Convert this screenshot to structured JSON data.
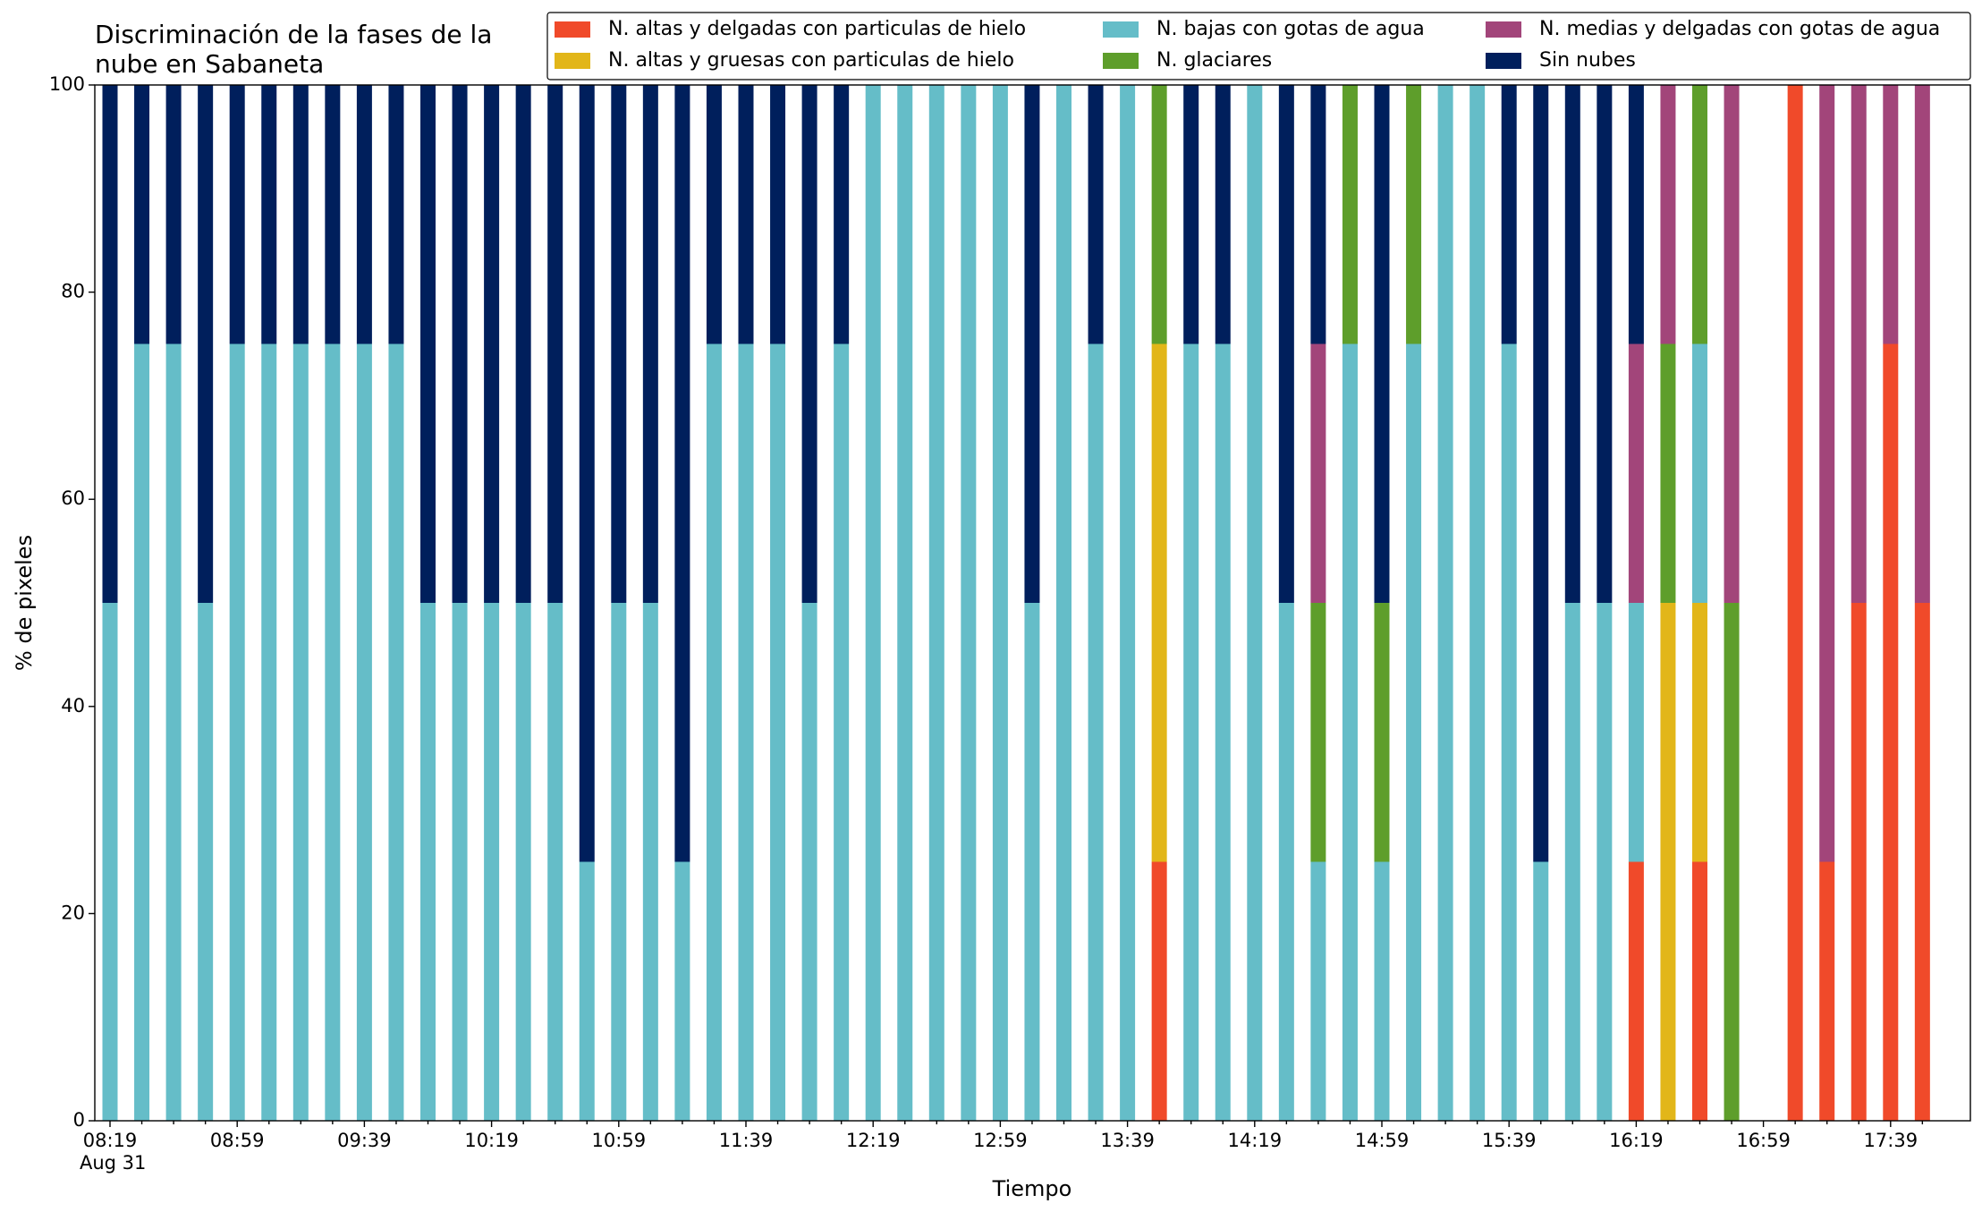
{
  "chart_data": {
    "type": "stacked_bar",
    "title_lines": [
      "Discriminación de la fases de la",
      "nube en Sabaneta"
    ],
    "xlabel": "Tiempo",
    "xlabel_date": "Aug 31",
    "ylabel": "% de pixeles",
    "ylim": [
      0,
      100
    ],
    "yticks": [
      0,
      20,
      40,
      60,
      80,
      100
    ],
    "grid": false,
    "legend": "top right",
    "categories": [
      "08:19",
      null,
      null,
      null,
      "08:59",
      null,
      null,
      null,
      "09:39",
      null,
      null,
      null,
      "10:19",
      null,
      null,
      null,
      "10:59",
      null,
      null,
      null,
      "11:39",
      null,
      null,
      null,
      "12:19",
      null,
      null,
      null,
      "12:59",
      null,
      null,
      null,
      "13:39",
      null,
      null,
      null,
      "14:19",
      null,
      null,
      null,
      "14:59",
      null,
      null,
      null,
      "15:39",
      null,
      null,
      null,
      "16:19",
      null,
      null,
      null,
      "16:59",
      null,
      null,
      null,
      "17:39",
      null
    ],
    "series": [
      {
        "name": "N. altas y delgadas con particulas de hielo",
        "color": "#f04a2a",
        "values": [
          0,
          0,
          0,
          0,
          0,
          0,
          0,
          0,
          0,
          0,
          0,
          0,
          0,
          0,
          0,
          0,
          0,
          0,
          0,
          0,
          0,
          0,
          0,
          0,
          0,
          0,
          0,
          0,
          0,
          0,
          0,
          0,
          0,
          25,
          0,
          0,
          0,
          0,
          0,
          0,
          0,
          0,
          0,
          0,
          0,
          0,
          0,
          0,
          25,
          0,
          25,
          0,
          0,
          100,
          25,
          50,
          75,
          50
        ]
      },
      {
        "name": "N. altas y gruesas con particulas de hielo",
        "color": "#e2b619",
        "values": [
          0,
          0,
          0,
          0,
          0,
          0,
          0,
          0,
          0,
          0,
          0,
          0,
          0,
          0,
          0,
          0,
          0,
          0,
          0,
          0,
          0,
          0,
          0,
          0,
          0,
          0,
          0,
          0,
          0,
          0,
          0,
          0,
          0,
          50,
          0,
          0,
          0,
          0,
          0,
          0,
          0,
          0,
          0,
          0,
          0,
          0,
          0,
          0,
          0,
          50,
          25,
          0,
          0,
          0,
          0,
          0,
          0,
          0
        ]
      },
      {
        "name": "N. bajas con gotas de agua",
        "color": "#65bdc8",
        "values": [
          50,
          75,
          75,
          50,
          75,
          75,
          75,
          75,
          75,
          75,
          50,
          50,
          50,
          50,
          50,
          25,
          50,
          50,
          25,
          75,
          75,
          75,
          50,
          75,
          100,
          100,
          100,
          100,
          100,
          50,
          100,
          75,
          100,
          0,
          75,
          75,
          100,
          50,
          25,
          75,
          25,
          75,
          100,
          100,
          75,
          25,
          50,
          50,
          25,
          0,
          25,
          0,
          0,
          0,
          0,
          0,
          0,
          0
        ]
      },
      {
        "name": "N. glaciares",
        "color": "#5e9e2b",
        "values": [
          0,
          0,
          0,
          0,
          0,
          0,
          0,
          0,
          0,
          0,
          0,
          0,
          0,
          0,
          0,
          0,
          0,
          0,
          0,
          0,
          0,
          0,
          0,
          0,
          0,
          0,
          0,
          0,
          0,
          0,
          0,
          0,
          0,
          25,
          0,
          0,
          0,
          0,
          25,
          25,
          25,
          25,
          0,
          0,
          0,
          0,
          0,
          0,
          0,
          25,
          25,
          50,
          0,
          0,
          0,
          0,
          0,
          0
        ]
      },
      {
        "name": "N. medias y delgadas con gotas de agua",
        "color": "#a2457a",
        "values": [
          0,
          0,
          0,
          0,
          0,
          0,
          0,
          0,
          0,
          0,
          0,
          0,
          0,
          0,
          0,
          0,
          0,
          0,
          0,
          0,
          0,
          0,
          0,
          0,
          0,
          0,
          0,
          0,
          0,
          0,
          0,
          0,
          0,
          0,
          0,
          0,
          0,
          0,
          25,
          0,
          0,
          0,
          0,
          0,
          0,
          0,
          0,
          0,
          25,
          25,
          0,
          50,
          0,
          0,
          75,
          50,
          25,
          50
        ]
      },
      {
        "name": "Sin nubes",
        "color": "#001f5c",
        "values": [
          50,
          25,
          25,
          50,
          25,
          25,
          25,
          25,
          25,
          25,
          50,
          50,
          50,
          50,
          50,
          75,
          50,
          50,
          75,
          25,
          25,
          25,
          50,
          25,
          0,
          0,
          0,
          0,
          0,
          50,
          0,
          25,
          0,
          0,
          25,
          25,
          0,
          50,
          25,
          0,
          50,
          0,
          0,
          0,
          25,
          75,
          50,
          50,
          25,
          0,
          0,
          0,
          0,
          0,
          0,
          0,
          0,
          0
        ]
      }
    ]
  }
}
